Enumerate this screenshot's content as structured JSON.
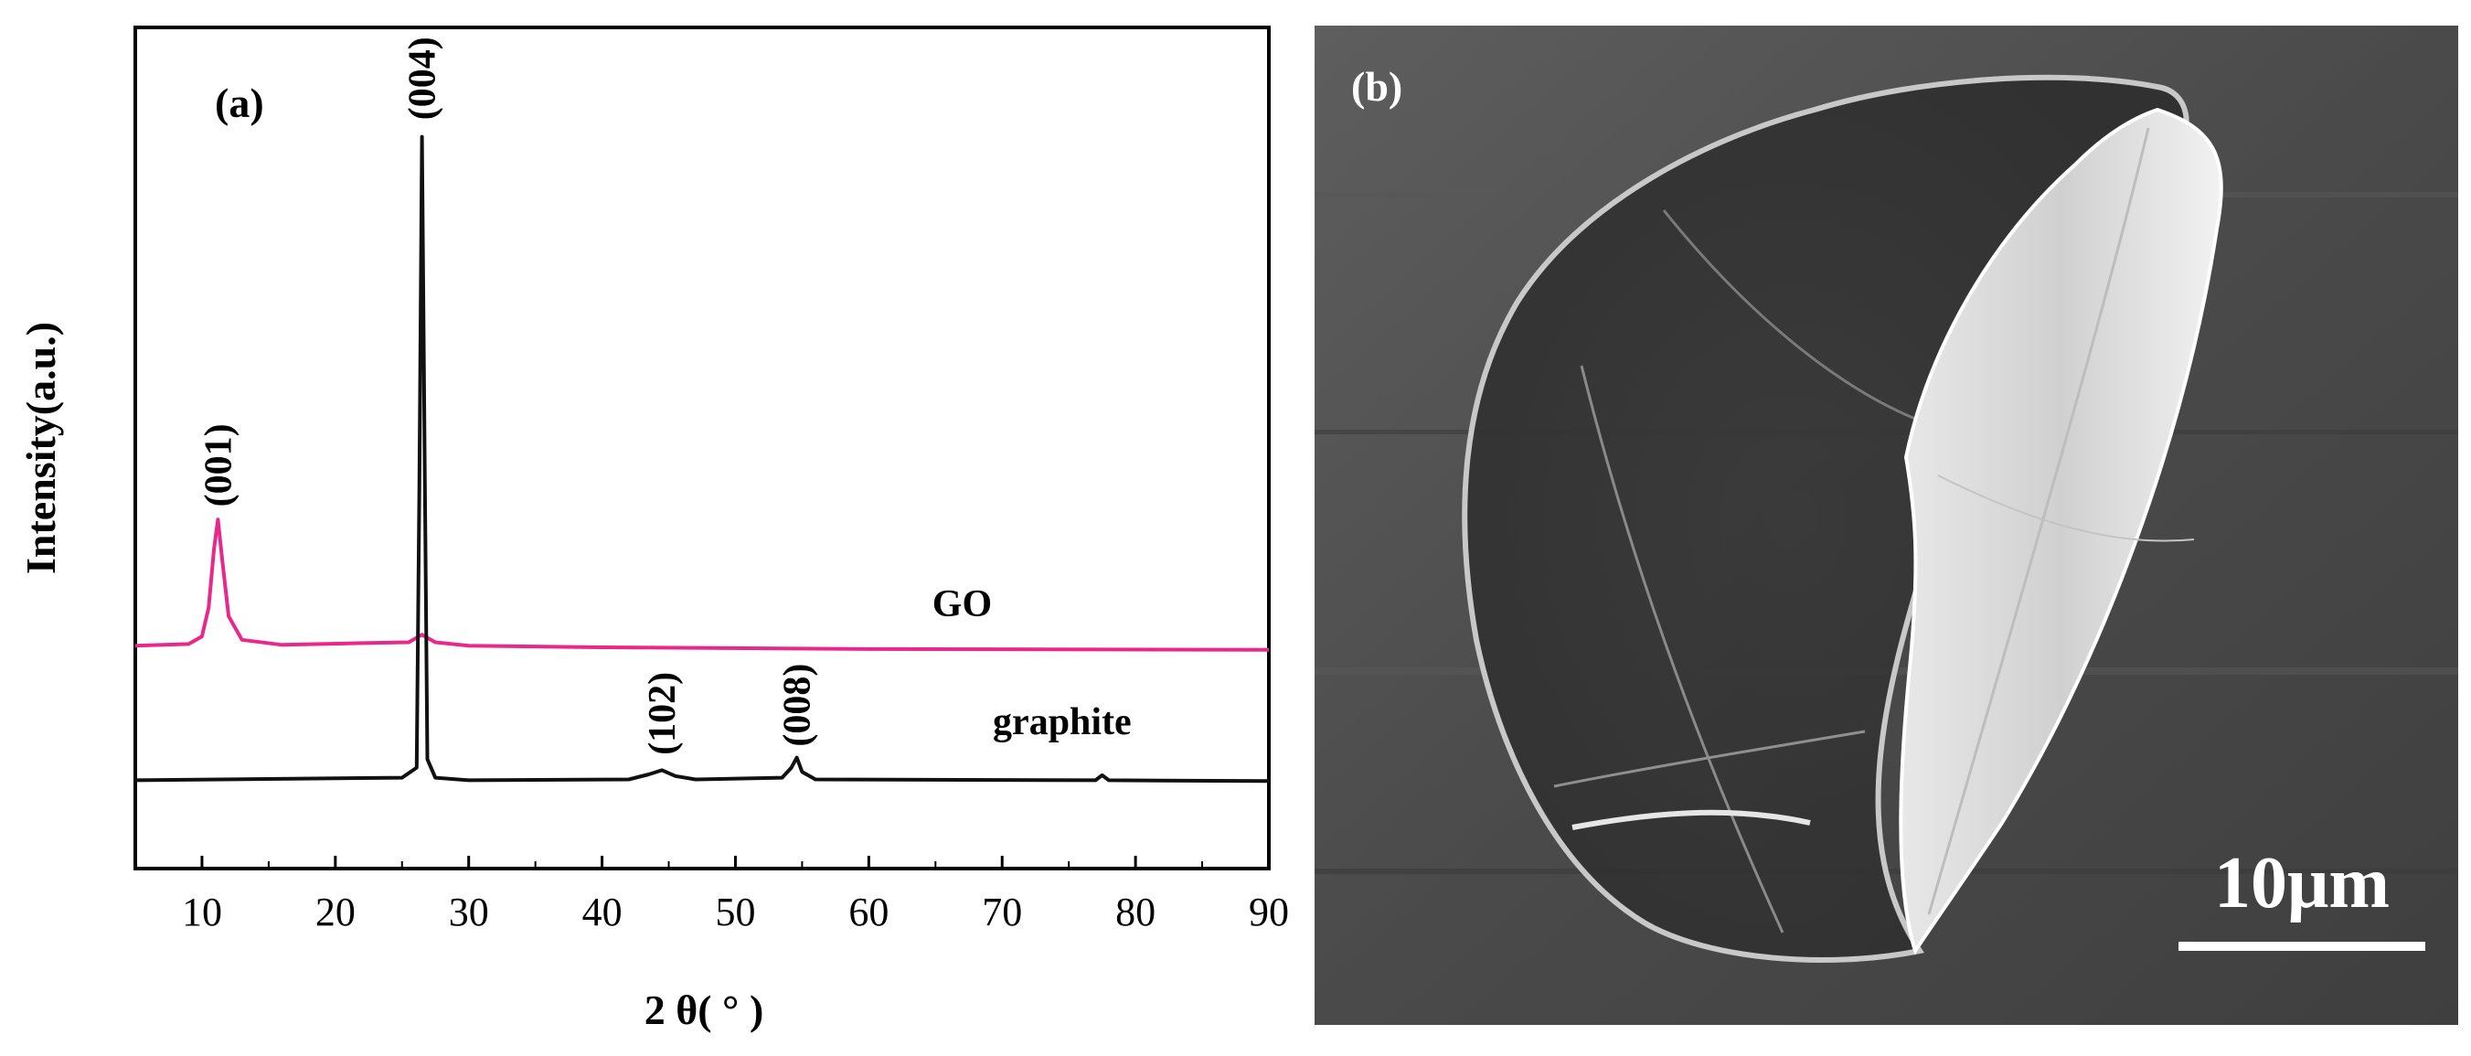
{
  "chart_data": {
    "type": "line",
    "panel_label": "(a)",
    "xlabel": "2 θ( ° )",
    "ylabel": "Intensity(a.u.)",
    "xlim": [
      5,
      90
    ],
    "ylim": [
      0,
      100
    ],
    "xticks": [
      10,
      20,
      30,
      40,
      50,
      60,
      70,
      80,
      90
    ],
    "yticks_visible": false,
    "grid": false,
    "series": [
      {
        "name": "GO",
        "color": "#e8288a",
        "x": [
          5,
          9,
          10,
          10.5,
          10.9,
          11.2,
          11.5,
          12,
          13,
          16,
          22,
          25.5,
          26.5,
          27.5,
          30,
          40,
          60,
          90
        ],
        "values": [
          26.5,
          26.7,
          27.6,
          31,
          38,
          41.5,
          37,
          30,
          27.2,
          26.6,
          26.8,
          26.9,
          27.8,
          26.9,
          26.5,
          26.3,
          26.1,
          26.0
        ]
      },
      {
        "name": "graphite",
        "color": "#111111",
        "x": [
          5,
          25,
          26.1,
          26.3,
          26.5,
          26.7,
          26.9,
          27.5,
          30,
          42,
          43.5,
          44.5,
          45.5,
          47,
          53.5,
          54.2,
          54.6,
          55,
          56,
          77,
          77.5,
          78,
          90
        ],
        "values": [
          10.5,
          10.8,
          12,
          45,
          87,
          48,
          13,
          10.8,
          10.5,
          10.6,
          11.2,
          11.7,
          11,
          10.6,
          10.8,
          12,
          13.2,
          11.5,
          10.6,
          10.5,
          11.1,
          10.5,
          10.4
        ]
      }
    ],
    "peak_labels": [
      {
        "text": "(001)",
        "x": 11.2,
        "y": 43
      },
      {
        "text": "(004)",
        "x": 26.5,
        "y": 89
      },
      {
        "text": "(102)",
        "x": 44.5,
        "y": 13.5
      },
      {
        "text": "(008)",
        "x": 54.6,
        "y": 14.5
      }
    ],
    "series_labels": [
      {
        "text": "GO",
        "x": 67,
        "y": 30
      },
      {
        "text": "graphite",
        "x": 74.5,
        "y": 16
      }
    ]
  },
  "sem_panel": {
    "label": "(b)",
    "scale_bar_text": "10μm"
  }
}
